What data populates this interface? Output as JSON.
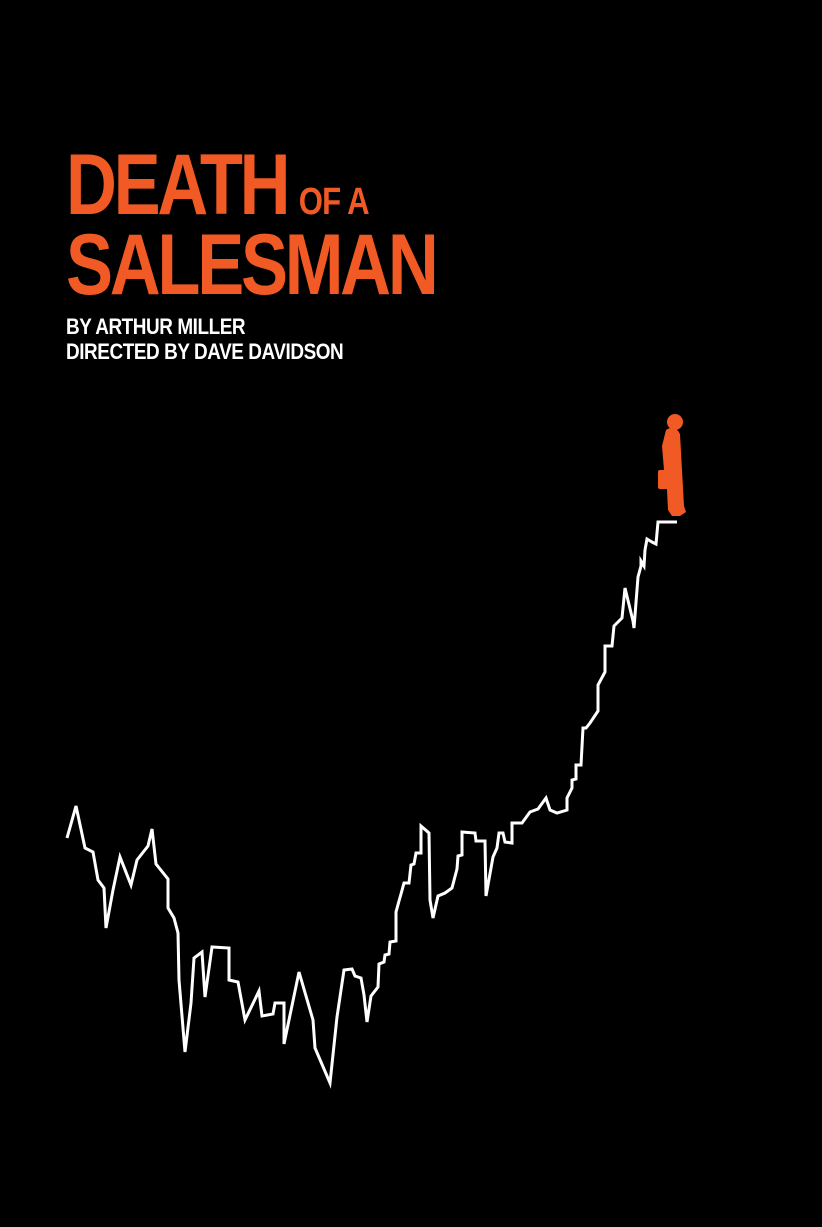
{
  "poster": {
    "title_word_1": "DEATH",
    "title_small": "OF A",
    "title_word_2": "SALESMAN",
    "author_credit": "BY ARTHUR MILLER",
    "director_credit": "DIRECTED BY DAVE DAVIDSON"
  },
  "colors": {
    "background": "#000000",
    "accent": "#f15a24",
    "line": "#ffffff"
  },
  "icons": {
    "figure": "salesman-with-briefcase-silhouette"
  }
}
